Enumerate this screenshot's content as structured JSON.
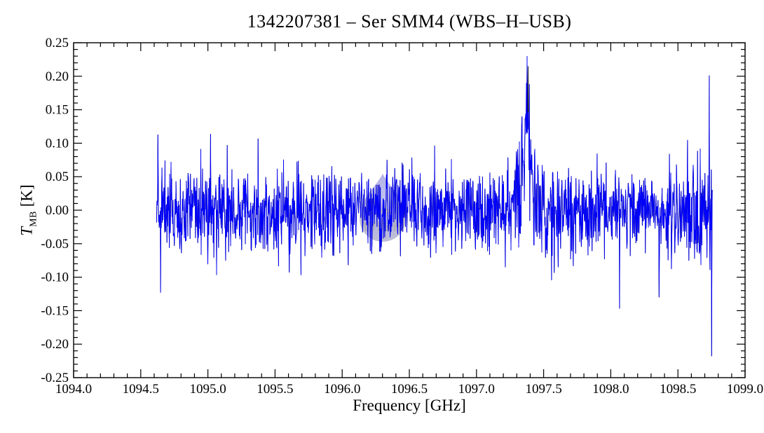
{
  "chart_data": {
    "type": "line",
    "title": "1342207381 – Ser SMM4 (WBS–H–USB)",
    "xlabel": "Frequency [GHz]",
    "ylabel": "T_MB [K]",
    "ylabel_parts": {
      "main": "T",
      "sub": "MB",
      "unit": " [K]"
    },
    "xlim": [
      1094.0,
      1099.0
    ],
    "ylim": [
      -0.25,
      0.25
    ],
    "grid": false,
    "legend": "none",
    "x_minor_step": 0.1,
    "y_minor_step": 0.01,
    "x_ticks": [
      {
        "v": 1094.0,
        "label": "1094.0"
      },
      {
        "v": 1094.5,
        "label": "1094.5"
      },
      {
        "v": 1095.0,
        "label": "1095.0"
      },
      {
        "v": 1095.5,
        "label": "1095.5"
      },
      {
        "v": 1096.0,
        "label": "1096.0"
      },
      {
        "v": 1096.5,
        "label": "1096.5"
      },
      {
        "v": 1097.0,
        "label": "1097.0"
      },
      {
        "v": 1097.5,
        "label": "1097.5"
      },
      {
        "v": 1098.0,
        "label": "1098.0"
      },
      {
        "v": 1098.5,
        "label": "1098.5"
      },
      {
        "v": 1099.0,
        "label": "1099.0"
      }
    ],
    "y_ticks": [
      {
        "v": 0.25,
        "label": "0.25"
      },
      {
        "v": 0.2,
        "label": "0.20"
      },
      {
        "v": 0.15,
        "label": "0.15"
      },
      {
        "v": 0.1,
        "label": "0.10"
      },
      {
        "v": 0.05,
        "label": "0.05"
      },
      {
        "v": 0.0,
        "label": "0.00"
      },
      {
        "v": -0.05,
        "label": "-0.05"
      },
      {
        "v": -0.1,
        "label": "-0.10"
      },
      {
        "v": -0.15,
        "label": "-0.15"
      },
      {
        "v": -0.2,
        "label": "-0.20"
      },
      {
        "v": -0.25,
        "label": "-0.25"
      }
    ],
    "series": [
      {
        "name": "spectrum-underlay",
        "color": "#000000"
      },
      {
        "name": "spectrum",
        "color": "#0000ff"
      }
    ],
    "spectrum": {
      "x_start": 1094.618,
      "x_end": 1098.756,
      "n_points": 1660,
      "baseline_K": 0.0,
      "noise_rms_K": 0.031,
      "emission_line": {
        "center_GHz": 1097.37,
        "peak_K": 0.215,
        "approx_fwhm_GHz": 0.09
      },
      "notable_spikes": [
        {
          "x": 1097.383,
          "y": 0.215,
          "color": "black"
        },
        {
          "x": 1097.371,
          "y": 0.19,
          "color": "blue"
        },
        {
          "x": 1097.34,
          "y": 0.14,
          "color": "blue"
        },
        {
          "x": 1098.733,
          "y": 0.201,
          "color": "blue"
        },
        {
          "x": 1098.752,
          "y": -0.218,
          "color": "blue"
        },
        {
          "x": 1098.066,
          "y": -0.147,
          "color": "blue"
        },
        {
          "x": 1098.36,
          "y": -0.13,
          "color": "blue"
        },
        {
          "x": 1094.627,
          "y": 0.113,
          "color": "blue"
        },
        {
          "x": 1094.648,
          "y": -0.123,
          "color": "blue"
        },
        {
          "x": 1095.375,
          "y": 0.107,
          "color": "blue"
        }
      ]
    },
    "watermark": {
      "label": "WISH",
      "center_GHz": 1096.3,
      "center_K": -0.01
    }
  }
}
